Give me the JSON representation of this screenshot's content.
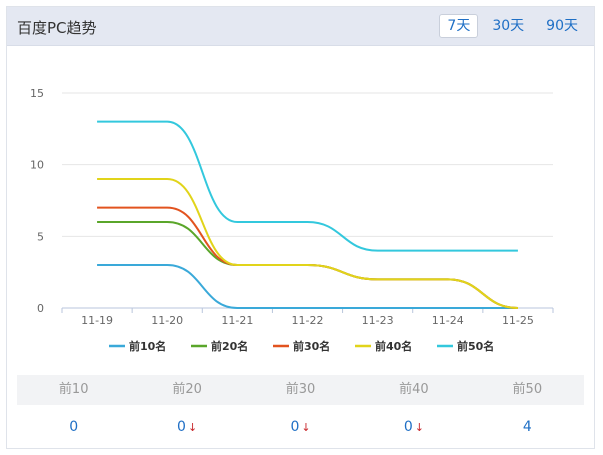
{
  "header": {
    "title": "百度PC趋势"
  },
  "tabs": [
    {
      "label": "7天",
      "active": true
    },
    {
      "label": "30天",
      "active": false
    },
    {
      "label": "90天",
      "active": false
    }
  ],
  "chart_data": {
    "type": "line",
    "x": [
      "11-19",
      "11-20",
      "11-21",
      "11-22",
      "11-23",
      "11-24",
      "11-25"
    ],
    "ylim": [
      0,
      15
    ],
    "yticks": [
      0,
      5,
      10,
      15
    ],
    "grid": true,
    "legend_position": "bottom",
    "series": [
      {
        "name": "前10名",
        "color": "#3aa9d9",
        "values": [
          3,
          3,
          0,
          0,
          0,
          0,
          0
        ]
      },
      {
        "name": "前20名",
        "color": "#5aa62a",
        "values": [
          6,
          6,
          3,
          3,
          2,
          2,
          0
        ]
      },
      {
        "name": "前30名",
        "color": "#e2531f",
        "values": [
          7,
          7,
          3,
          3,
          2,
          2,
          0
        ]
      },
      {
        "name": "前40名",
        "color": "#e1d41a",
        "values": [
          9,
          9,
          3,
          3,
          2,
          2,
          0
        ]
      },
      {
        "name": "前50名",
        "color": "#33c8dd",
        "values": [
          13,
          13,
          6,
          6,
          4,
          4,
          4
        ]
      }
    ]
  },
  "stats": {
    "headers": [
      "前10",
      "前20",
      "前30",
      "前40",
      "前50"
    ],
    "values": [
      "0",
      "0",
      "0",
      "0",
      "4"
    ],
    "down_arrow": [
      false,
      true,
      true,
      true,
      false
    ],
    "arrow_glyph": "↓"
  }
}
